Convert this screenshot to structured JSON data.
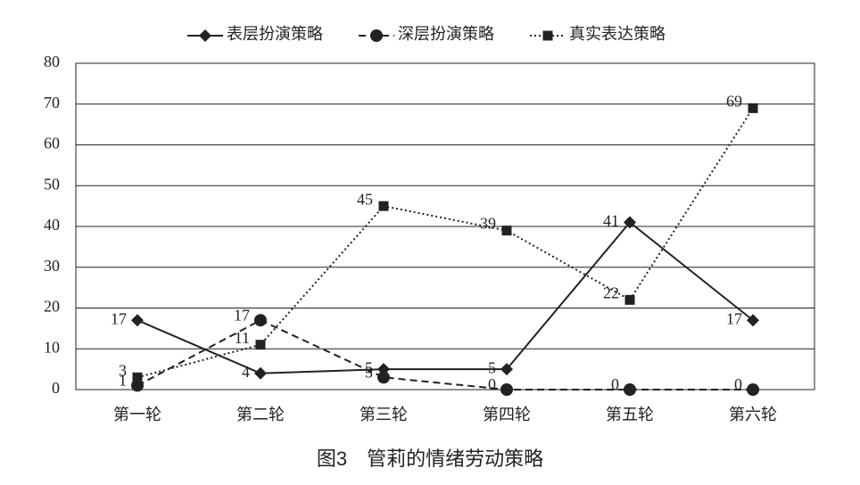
{
  "chart_data": {
    "type": "line",
    "title": "图3　管莉的情绪劳动策略",
    "categories": [
      "第一轮",
      "第二轮",
      "第三轮",
      "第四轮",
      "第五轮",
      "第六轮"
    ],
    "series": [
      {
        "name": "表层扮演策略",
        "color": "#222222",
        "line_style": "solid",
        "marker": "diamond",
        "values": [
          17,
          4,
          5,
          5,
          41,
          17
        ]
      },
      {
        "name": "深层扮演策略",
        "color": "#222222",
        "line_style": "dashed",
        "marker": "circle",
        "values": [
          1,
          17,
          3,
          0,
          0,
          0
        ]
      },
      {
        "name": "真实表达策略",
        "color": "#222222",
        "line_style": "dotted",
        "marker": "square",
        "values": [
          3,
          11,
          45,
          39,
          22,
          69
        ]
      }
    ],
    "ylim": [
      0,
      80
    ],
    "yticks": [
      0,
      10,
      20,
      30,
      40,
      50,
      60,
      70,
      80
    ],
    "grid": true,
    "legend": "top"
  }
}
